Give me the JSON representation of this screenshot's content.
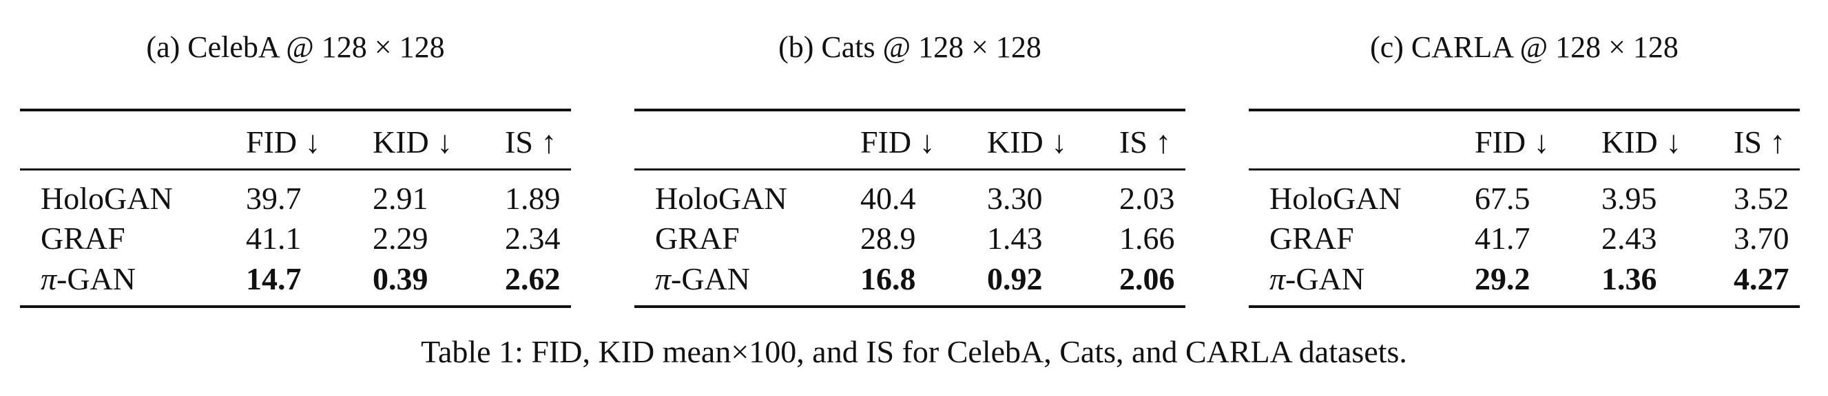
{
  "tables": [
    {
      "title": "(a) CelebA @ 128 × 128",
      "headers": [
        "",
        "FID ↓",
        "KID ↓",
        "IS ↑"
      ],
      "rows": [
        {
          "method": "HoloGAN",
          "values": [
            "39.7",
            "2.91",
            "1.89"
          ],
          "bold": false
        },
        {
          "method_prefix": "π",
          "method": "-GAN",
          "values": [
            "14.7",
            "0.39",
            "2.62"
          ],
          "bold": true
        },
        {
          "method": "GRAF",
          "values": [
            "41.1",
            "2.29",
            "2.34"
          ],
          "bold": false
        }
      ]
    },
    {
      "title": "(b) Cats @ 128 × 128",
      "headers": [
        "",
        "FID ↓",
        "KID ↓",
        "IS ↑"
      ],
      "rows": [
        {
          "method": "HoloGAN",
          "values": [
            "40.4",
            "3.30",
            "2.03"
          ],
          "bold": false
        },
        {
          "method": "GRAF",
          "values": [
            "28.9",
            "1.43",
            "1.66"
          ],
          "bold": false
        },
        {
          "method_prefix": "π",
          "method": "-GAN",
          "values": [
            "16.8",
            "0.92",
            "2.06"
          ],
          "bold": true
        }
      ]
    },
    {
      "title": "(c) CARLA @ 128 × 128",
      "headers": [
        "",
        "FID ↓",
        "KID ↓",
        "IS ↑"
      ],
      "rows": [
        {
          "method": "HoloGAN",
          "values": [
            "67.5",
            "3.95",
            "3.52"
          ],
          "bold": false
        },
        {
          "method": "GRAF",
          "values": [
            "41.7",
            "2.43",
            "3.70"
          ],
          "bold": false
        },
        {
          "method_prefix": "π",
          "method": "-GAN",
          "values": [
            "29.2",
            "1.36",
            "4.27"
          ],
          "bold": true
        }
      ]
    }
  ],
  "caption": "Table 1: FID, KID mean×100, and IS for CelebA, Cats, and CARLA datasets."
}
